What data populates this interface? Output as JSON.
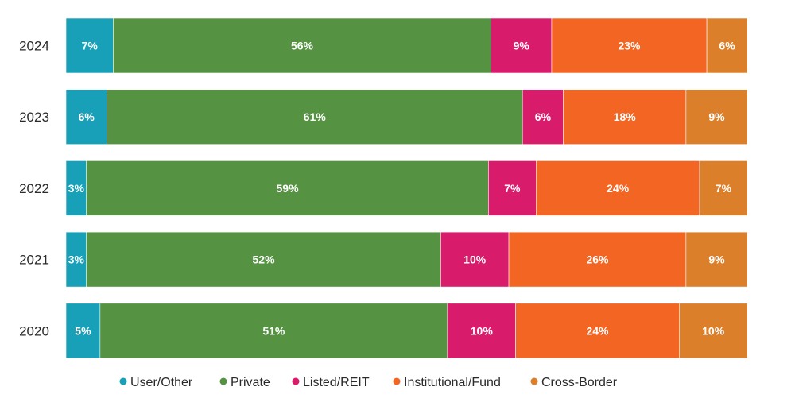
{
  "chart_data": {
    "type": "bar",
    "orientation": "horizontal",
    "stacked": true,
    "percent": true,
    "title": "",
    "xlabel": "",
    "ylabel": "",
    "categories": [
      "2024",
      "2023",
      "2022",
      "2021",
      "2020"
    ],
    "series": [
      {
        "name": "User/Other",
        "color": "#17a0b8",
        "values": [
          7,
          6,
          3,
          3,
          5
        ],
        "labels": [
          "7%",
          "6%",
          "3%",
          "3%",
          "5%"
        ]
      },
      {
        "name": "Private",
        "color": "#559342",
        "values": [
          56,
          61,
          59,
          52,
          51
        ],
        "labels": [
          "56%",
          "61%",
          "59%",
          "52%",
          "51%"
        ]
      },
      {
        "name": "Listed/REIT",
        "color": "#d81b6b",
        "values": [
          9,
          6,
          7,
          10,
          10
        ],
        "labels": [
          "9%",
          "6%",
          "7%",
          "10%",
          "10%"
        ]
      },
      {
        "name": "Institutional/Fund",
        "color": "#f26522",
        "values": [
          23,
          18,
          24,
          26,
          24
        ],
        "labels": [
          "23%",
          "18%",
          "24%",
          "26%",
          "24%"
        ]
      },
      {
        "name": "Cross-Border",
        "color": "#dc7f2a",
        "values": [
          6,
          9,
          7,
          9,
          10
        ],
        "labels": [
          "6%",
          "9%",
          "7%",
          "9%",
          "10%"
        ]
      }
    ],
    "legend_position": "bottom",
    "grid": false
  }
}
